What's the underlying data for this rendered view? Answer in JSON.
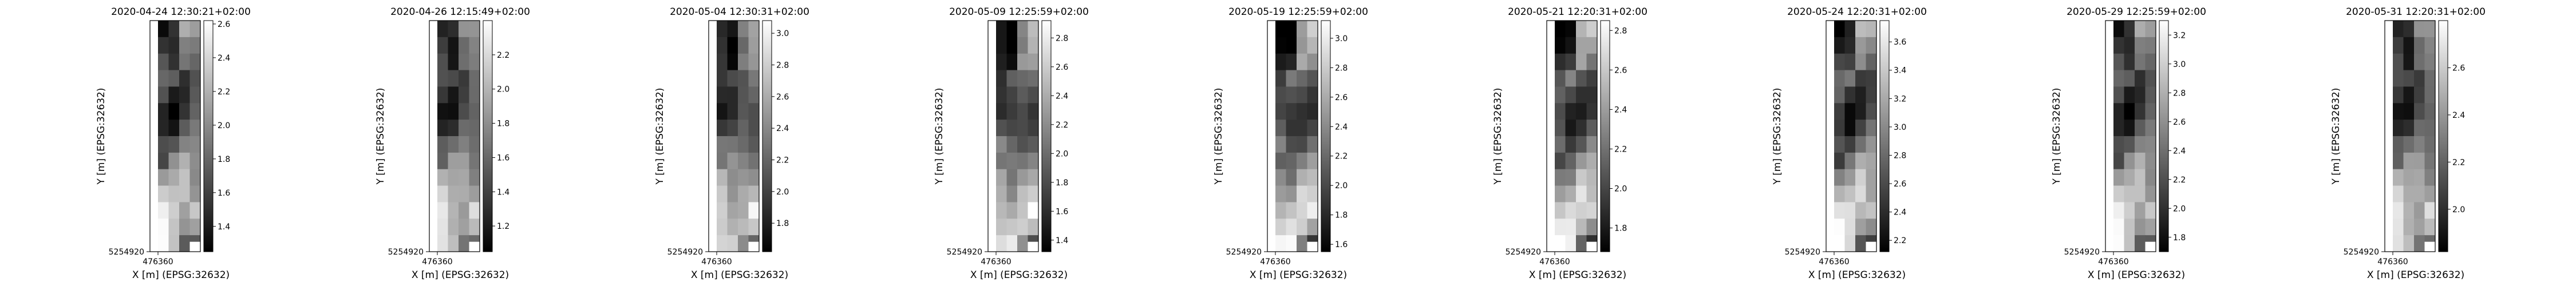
{
  "chart_data": {
    "type": "heatmap",
    "colormap": "grayscale",
    "xlabel": "X [m] (EPSG:32632)",
    "ylabel": "Y [m] (EPSG:32632)",
    "x_tick": "476360",
    "y_tick": "5254920",
    "panels": [
      {
        "title": "2020-04-24 12:30:21+02:00",
        "vmin": 1.25,
        "vmax": 2.62,
        "ticks": [
          "1.4",
          "1.6",
          "1.8",
          "2.0",
          "2.2",
          "2.4",
          "2.6"
        ],
        "tick_values": [
          1.4,
          1.6,
          1.8,
          2.0,
          2.2,
          2.4,
          2.6
        ]
      },
      {
        "title": "2020-04-26 12:15:49+02:00",
        "vmin": 1.05,
        "vmax": 2.4,
        "ticks": [
          "1.2",
          "1.4",
          "1.6",
          "1.8",
          "2.0",
          "2.2"
        ],
        "tick_values": [
          1.2,
          1.4,
          1.6,
          1.8,
          2.0,
          2.2
        ]
      },
      {
        "title": "2020-05-04 12:30:31+02:00",
        "vmin": 1.62,
        "vmax": 3.08,
        "ticks": [
          "1.8",
          "2.0",
          "2.2",
          "2.4",
          "2.6",
          "2.8",
          "3.0"
        ],
        "tick_values": [
          1.8,
          2.0,
          2.2,
          2.4,
          2.6,
          2.8,
          3.0
        ]
      },
      {
        "title": "2020-05-09 12:25:59+02:00",
        "vmin": 1.32,
        "vmax": 2.92,
        "ticks": [
          "1.4",
          "1.6",
          "1.8",
          "2.0",
          "2.2",
          "2.4",
          "2.6",
          "2.8"
        ],
        "tick_values": [
          1.4,
          1.6,
          1.8,
          2.0,
          2.2,
          2.4,
          2.6,
          2.8
        ]
      },
      {
        "title": "2020-05-19 12:25:59+02:00",
        "vmin": 1.55,
        "vmax": 3.12,
        "ticks": [
          "1.6",
          "1.8",
          "2.0",
          "2.2",
          "2.4",
          "2.6",
          "2.8",
          "3.0"
        ],
        "tick_values": [
          1.6,
          1.8,
          2.0,
          2.2,
          2.4,
          2.6,
          2.8,
          3.0
        ]
      },
      {
        "title": "2020-05-21 12:20:31+02:00",
        "vmin": 1.68,
        "vmax": 2.85,
        "ticks": [
          "1.8",
          "2.0",
          "2.2",
          "2.4",
          "2.6",
          "2.8"
        ],
        "tick_values": [
          1.8,
          2.0,
          2.2,
          2.4,
          2.6,
          2.8
        ]
      },
      {
        "title": "2020-05-24 12:20:31+02:00",
        "vmin": 2.12,
        "vmax": 3.75,
        "ticks": [
          "2.2",
          "2.4",
          "2.6",
          "2.8",
          "3.0",
          "3.2",
          "3.4",
          "3.6"
        ],
        "tick_values": [
          2.2,
          2.4,
          2.6,
          2.8,
          3.0,
          3.2,
          3.4,
          3.6
        ]
      },
      {
        "title": "2020-05-29 12:25:59+02:00",
        "vmin": 1.7,
        "vmax": 3.3,
        "ticks": [
          "1.8",
          "2.0",
          "2.2",
          "2.4",
          "2.6",
          "2.8",
          "3.0",
          "3.2"
        ],
        "tick_values": [
          1.8,
          2.0,
          2.2,
          2.4,
          2.6,
          2.8,
          3.0,
          3.2
        ]
      },
      {
        "title": "2020-05-31 12:20:31+02:00",
        "vmin": 1.82,
        "vmax": 2.8,
        "ticks": [
          "2.0",
          "2.2",
          "2.4",
          "2.6"
        ],
        "tick_values": [
          2.0,
          2.2,
          2.4,
          2.6
        ]
      }
    ],
    "grid_rows": 14,
    "grid_cols": 4,
    "base_pattern": [
      [
        0.04,
        0.08,
        0.62,
        0.7
      ],
      [
        0.12,
        0.05,
        0.52,
        0.6
      ],
      [
        0.22,
        0.14,
        0.55,
        0.5
      ],
      [
        0.3,
        0.4,
        0.3,
        0.35
      ],
      [
        0.28,
        0.2,
        0.24,
        0.3
      ],
      [
        0.18,
        0.12,
        0.22,
        0.28
      ],
      [
        0.25,
        0.16,
        0.3,
        0.36
      ],
      [
        0.42,
        0.34,
        0.4,
        0.46
      ],
      [
        0.35,
        0.5,
        0.58,
        0.56
      ],
      [
        0.6,
        0.55,
        0.7,
        0.62
      ],
      [
        0.72,
        0.65,
        0.78,
        0.7
      ],
      [
        0.82,
        0.76,
        0.72,
        0.88
      ],
      [
        0.88,
        0.8,
        0.7,
        0.66
      ],
      [
        0.95,
        0.86,
        0.45,
        0.3
      ]
    ]
  }
}
